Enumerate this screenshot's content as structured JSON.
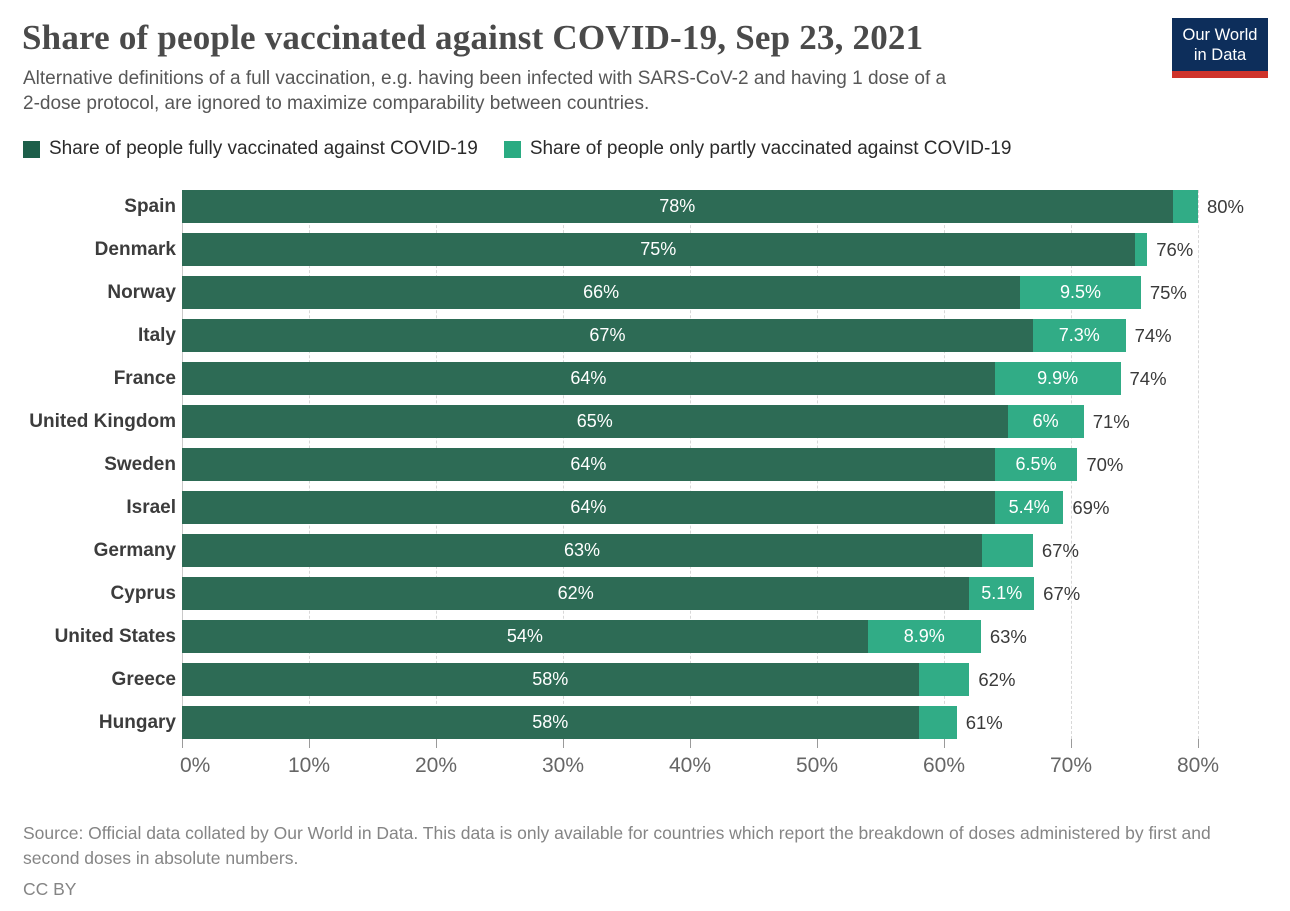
{
  "header": {
    "title": "Share of people vaccinated against COVID-19, Sep 23, 2021",
    "subtitle_line1": "Alternative definitions of a full vaccination, e.g. having been infected with SARS-CoV-2 and having 1 dose of a",
    "subtitle_line2": "2-dose protocol, are ignored to maximize comparability between countries.",
    "logo_line1": "Our World",
    "logo_line2": "in Data",
    "logo_colors": {
      "background": "#0d2e5b",
      "underline": "#cf332b"
    }
  },
  "legend": [
    {
      "label": "Share of people fully vaccinated against COVID-19",
      "color": "#1d5f4a"
    },
    {
      "label": "Share of people only partly vaccinated against COVID-19",
      "color": "#2aab82"
    }
  ],
  "chart_data": {
    "type": "bar",
    "orientation": "horizontal",
    "stacked": true,
    "title": "Share of people vaccinated against COVID-19, Sep 23, 2021",
    "categories": [
      "Spain",
      "Denmark",
      "Norway",
      "Italy",
      "France",
      "United Kingdom",
      "Sweden",
      "Israel",
      "Germany",
      "Cyprus",
      "United States",
      "Greece",
      "Hungary"
    ],
    "series": [
      {
        "name": "Share of people fully vaccinated against COVID-19",
        "color": "#2d6b55",
        "values": [
          78,
          75,
          66,
          67,
          64,
          65,
          64,
          64,
          63,
          62,
          54,
          58,
          58
        ],
        "labels": [
          "78%",
          "75%",
          "66%",
          "67%",
          "64%",
          "65%",
          "64%",
          "64%",
          "63%",
          "62%",
          "54%",
          "58%",
          "58%"
        ]
      },
      {
        "name": "Share of people only partly vaccinated against COVID-19",
        "color": "#31ac86",
        "values": [
          2,
          1,
          9.5,
          7.3,
          9.9,
          6,
          6.5,
          5.4,
          4,
          5.1,
          8.9,
          4,
          3
        ],
        "labels": [
          "",
          "",
          "9.5%",
          "7.3%",
          "9.9%",
          "6%",
          "6.5%",
          "5.4%",
          "",
          "5.1%",
          "8.9%",
          "",
          ""
        ]
      }
    ],
    "totals": [
      80,
      76,
      75,
      74,
      74,
      71,
      70,
      69,
      67,
      67,
      63,
      62,
      61
    ],
    "total_labels": [
      "80%",
      "76%",
      "75%",
      "74%",
      "74%",
      "71%",
      "70%",
      "69%",
      "67%",
      "67%",
      "63%",
      "62%",
      "61%"
    ],
    "x_ticks": [
      "0%",
      "10%",
      "20%",
      "30%",
      "40%",
      "50%",
      "60%",
      "70%",
      "80%"
    ],
    "xlim": [
      0,
      80
    ],
    "xlabel": "",
    "ylabel": "",
    "grid": "vertical-dashed",
    "legend_position": "top"
  },
  "footer": {
    "source": "Source: Official data collated by Our World in Data. This data is only available for countries which report the breakdown of doses administered by first and second doses in absolute numbers.",
    "license": "CC BY"
  }
}
